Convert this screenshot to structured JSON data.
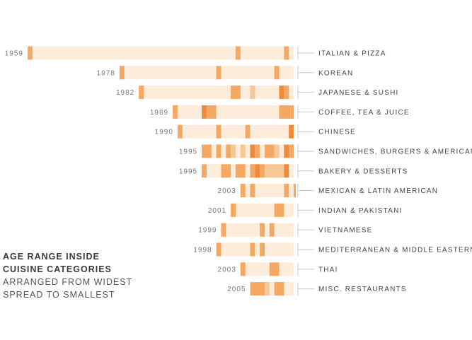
{
  "caption": {
    "title_line1": "AGE RANGE INSIDE",
    "title_line2": "CUISINE CATEGORIES",
    "subtitle_line1": "ARRANGED FROM WIDEST",
    "subtitle_line2": "SPREAD TO SMALLEST"
  },
  "chart_data": {
    "type": "bar",
    "title": "AGE RANGE INSIDE CUISINE CATEGORIES",
    "subtitle": "ARRANGED FROM WIDEST SPREAD TO SMALLEST",
    "x_range": [
      1959,
      2014
    ],
    "end_year": 2014,
    "colors": {
      "range": "#fcecd9",
      "light": "#f7c795",
      "mid": "#f4a862",
      "dark": "#ef8a3c"
    },
    "categories": [
      {
        "label": "ITALIAN & PIZZA",
        "start_label": "1959",
        "start": 1959,
        "marks": [
          {
            "year": 1959,
            "w": 1,
            "level": "mid"
          },
          {
            "year": 2002,
            "w": 1,
            "level": "mid"
          },
          {
            "year": 2012,
            "w": 1,
            "level": "mid"
          }
        ]
      },
      {
        "label": "KOREAN",
        "start_label": "1978",
        "start": 1978,
        "marks": [
          {
            "year": 1978,
            "w": 1,
            "level": "mid"
          },
          {
            "year": 1998,
            "w": 1,
            "level": "mid"
          },
          {
            "year": 2010,
            "w": 1,
            "level": "mid"
          }
        ]
      },
      {
        "label": "JAPANESE & SUSHI",
        "start_label": "1982",
        "start": 1982,
        "marks": [
          {
            "year": 1982,
            "w": 1,
            "level": "mid"
          },
          {
            "year": 2001,
            "w": 2,
            "level": "mid"
          },
          {
            "year": 2005,
            "w": 1,
            "level": "light"
          },
          {
            "year": 2011,
            "w": 1,
            "level": "dark"
          },
          {
            "year": 2012,
            "w": 1,
            "level": "mid"
          }
        ]
      },
      {
        "label": "COFFEE, TEA & JUICE",
        "start_label": "1989",
        "start": 1989,
        "marks": [
          {
            "year": 1989,
            "w": 1,
            "level": "mid"
          },
          {
            "year": 1995,
            "w": 1,
            "level": "dark"
          },
          {
            "year": 1996,
            "w": 1,
            "level": "mid"
          },
          {
            "year": 1997,
            "w": 1,
            "level": "mid"
          },
          {
            "year": 2011,
            "w": 3,
            "level": "mid"
          }
        ]
      },
      {
        "label": "CHINESE",
        "start_label": "1990",
        "start": 1990,
        "marks": [
          {
            "year": 1990,
            "w": 1,
            "level": "mid"
          },
          {
            "year": 1998,
            "w": 1,
            "level": "mid"
          },
          {
            "year": 2004,
            "w": 1,
            "level": "mid"
          },
          {
            "year": 2013,
            "w": 1,
            "level": "dark"
          }
        ]
      },
      {
        "label": "SANDWICHES, BURGERS & AMERICAN",
        "start_label": "1995",
        "start": 1995,
        "marks": [
          {
            "year": 1995,
            "w": 2,
            "level": "mid"
          },
          {
            "year": 1998,
            "w": 1,
            "level": "mid"
          },
          {
            "year": 2000,
            "w": 1,
            "level": "mid"
          },
          {
            "year": 2001,
            "w": 1,
            "level": "light"
          },
          {
            "year": 2003,
            "w": 1,
            "level": "light"
          },
          {
            "year": 2005,
            "w": 1,
            "level": "dark"
          },
          {
            "year": 2006,
            "w": 1,
            "level": "mid"
          },
          {
            "year": 2008,
            "w": 2,
            "level": "mid"
          },
          {
            "year": 2010,
            "w": 1,
            "level": "light"
          },
          {
            "year": 2012,
            "w": 1,
            "level": "dark"
          },
          {
            "year": 2013,
            "w": 1,
            "level": "mid"
          }
        ]
      },
      {
        "label": "BAKERY & DESSERTS",
        "start_label": "1995",
        "start": 1995,
        "marks": [
          {
            "year": 1995,
            "w": 1,
            "level": "mid"
          },
          {
            "year": 1999,
            "w": 2,
            "level": "mid"
          },
          {
            "year": 2002,
            "w": 2,
            "level": "mid"
          },
          {
            "year": 2005,
            "w": 1,
            "level": "mid"
          },
          {
            "year": 2006,
            "w": 1,
            "level": "dark"
          },
          {
            "year": 2007,
            "w": 1,
            "level": "mid"
          },
          {
            "year": 2008,
            "w": 4,
            "level": "light"
          },
          {
            "year": 2012,
            "w": 1,
            "level": "dark"
          }
        ]
      },
      {
        "label": "MEXICAN & LATIN AMERICAN",
        "start_label": "2003",
        "start": 2003,
        "marks": [
          {
            "year": 2003,
            "w": 1,
            "level": "mid"
          },
          {
            "year": 2005,
            "w": 1,
            "level": "mid"
          },
          {
            "year": 2012,
            "w": 1,
            "level": "mid"
          },
          {
            "year": 2014,
            "w": 1,
            "level": "mid"
          }
        ]
      },
      {
        "label": "INDIAN & PAKISTANI",
        "start_label": "2001",
        "start": 2001,
        "marks": [
          {
            "year": 2001,
            "w": 1,
            "level": "mid"
          },
          {
            "year": 2010,
            "w": 2,
            "level": "mid"
          }
        ]
      },
      {
        "label": "VIETNAMESE",
        "start_label": "1999",
        "start": 1999,
        "marks": [
          {
            "year": 1999,
            "w": 1,
            "level": "mid"
          },
          {
            "year": 2007,
            "w": 1,
            "level": "mid"
          },
          {
            "year": 2009,
            "w": 1,
            "level": "mid"
          }
        ]
      },
      {
        "label": "MEDITERRANEAN & MIDDLE EASTERN",
        "start_label": "1998",
        "start": 1998,
        "marks": [
          {
            "year": 1998,
            "w": 1,
            "level": "mid"
          },
          {
            "year": 2005,
            "w": 1,
            "level": "mid"
          },
          {
            "year": 2007,
            "w": 1,
            "level": "mid"
          }
        ]
      },
      {
        "label": "THAI",
        "start_label": "2003",
        "start": 2003,
        "marks": [
          {
            "year": 2003,
            "w": 1,
            "level": "mid"
          },
          {
            "year": 2009,
            "w": 2,
            "level": "mid"
          }
        ]
      },
      {
        "label": "MISC. RESTAURANTS",
        "start_label": "2005",
        "start": 2005,
        "marks": [
          {
            "year": 2005,
            "w": 3,
            "level": "mid"
          },
          {
            "year": 2008,
            "w": 1,
            "level": "light"
          },
          {
            "year": 2010,
            "w": 2,
            "level": "mid"
          }
        ]
      }
    ]
  }
}
